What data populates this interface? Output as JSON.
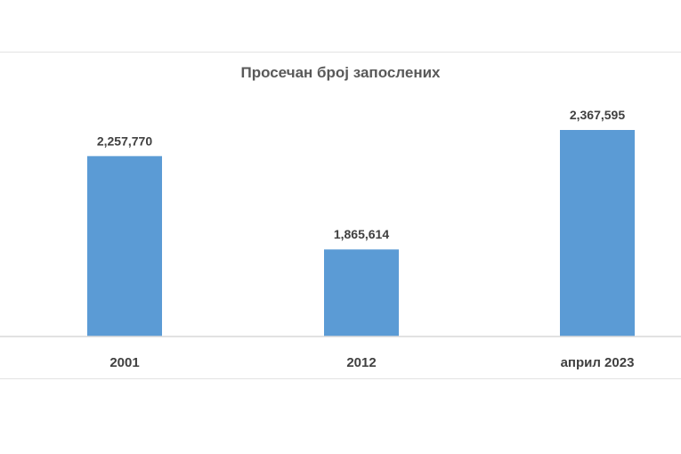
{
  "chart_data": {
    "type": "bar",
    "title": "Просечан број запослених",
    "categories": [
      "2001",
      "2012",
      "април 2023"
    ],
    "values": [
      2257770,
      1865614,
      2367595
    ],
    "value_labels": [
      "2,257,770",
      "1,865,614",
      "2,367,595"
    ],
    "xlabel": "",
    "ylabel": "",
    "ylim": [
      1500000,
      2500000
    ],
    "grid": false,
    "legend": "none",
    "colors": {
      "bar": "#5b9bd5",
      "axis": "#d9d9d9",
      "text": "#404040",
      "title": "#595959"
    }
  }
}
